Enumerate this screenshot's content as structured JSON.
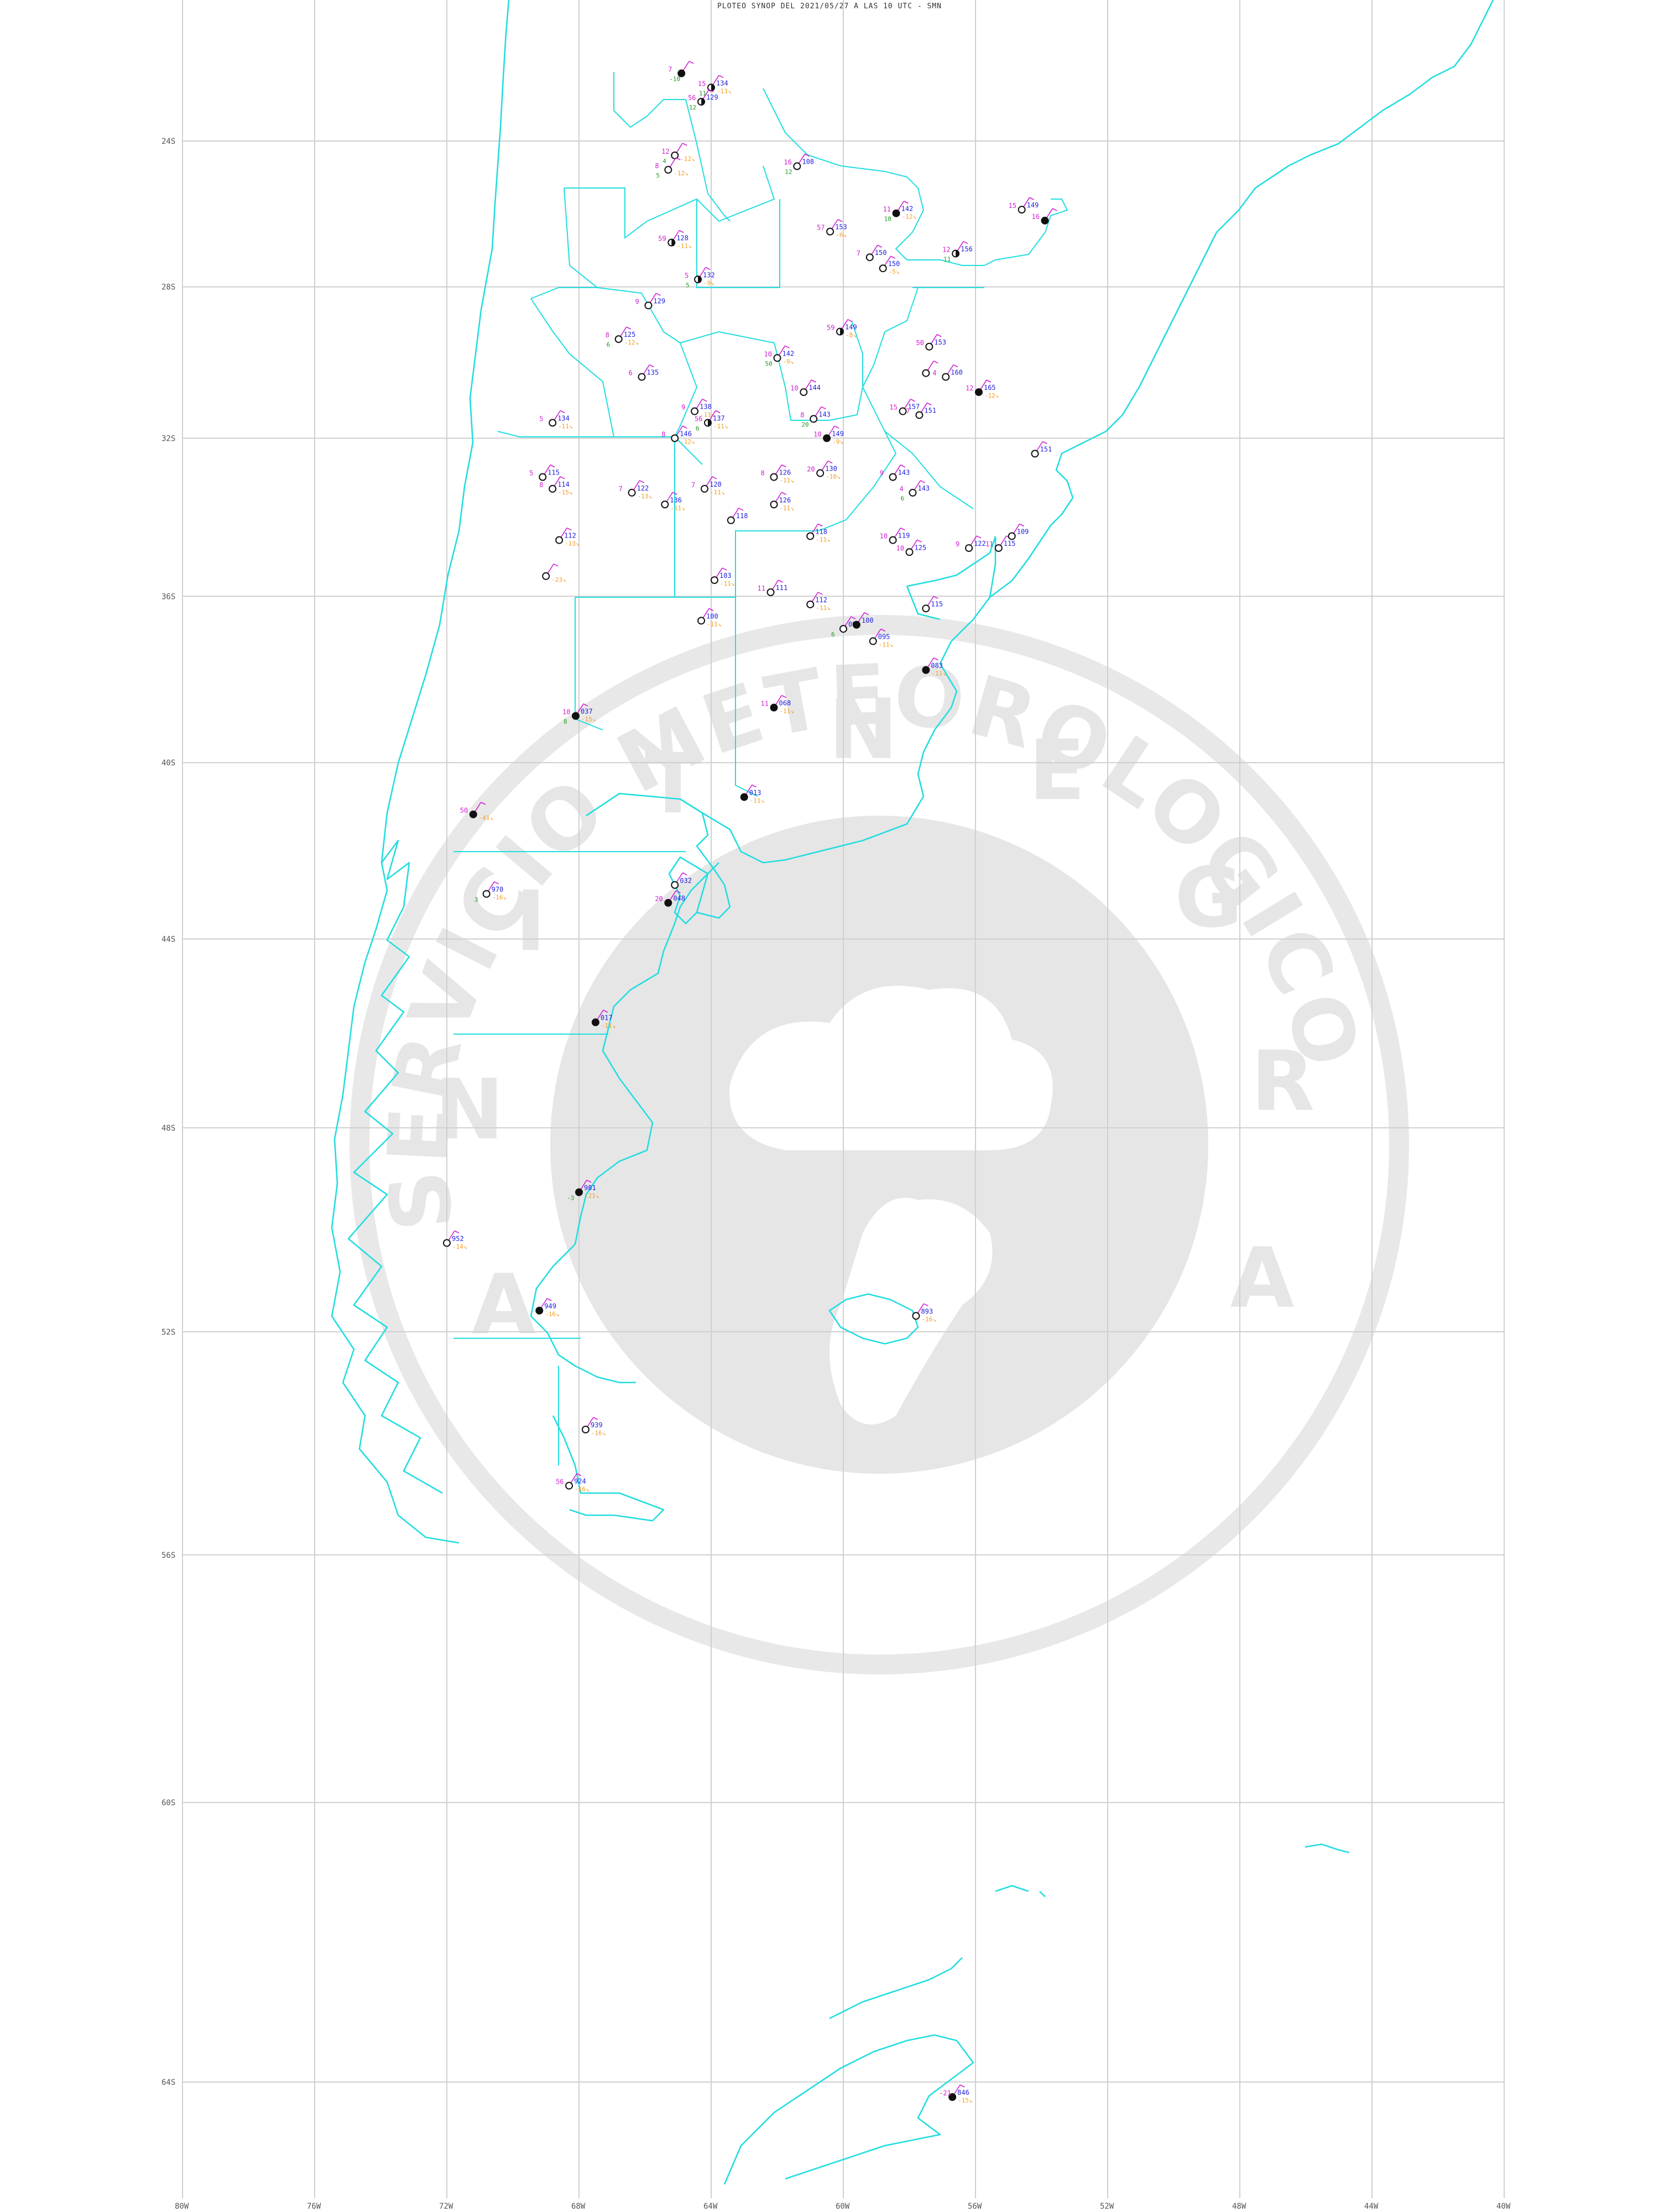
{
  "title": "PLOTEO SYNOP DEL 2021/05/27 A LAS 10 UTC - SMN",
  "lat_labels": [
    "24S",
    "28S",
    "32S",
    "36S",
    "40S",
    "44S",
    "48S",
    "52S",
    "56S",
    "60S",
    "64S"
  ],
  "lon_labels": [
    "80W",
    "76W",
    "72W",
    "68W",
    "64W",
    "60W",
    "56W",
    "52W",
    "48W",
    "44W",
    "40W"
  ],
  "watermark": {
    "arc_text": "SERVICIO METEOROLOGICO NACIONAL",
    "bottom_letters": [
      "A",
      "R",
      "G",
      "E",
      "N",
      "T",
      "I",
      "N",
      "A"
    ]
  },
  "colors": {
    "coast": "#22dde0",
    "grid": "#cfcfcf",
    "pressure": "#1e1ee0",
    "temperature": "#d020d0",
    "dewpoint": "#1f9b1f",
    "tendency": "#f39b1e",
    "watermark": "#e6e6e6"
  },
  "stations": [
    {
      "lon": -64.9,
      "lat": -22.1,
      "p": "",
      "t": "7",
      "d": "-10",
      "tend": "",
      "fill": "full"
    },
    {
      "lon": -64.0,
      "lat": -22.5,
      "p": "134",
      "t": "15",
      "d": "11",
      "tend": "-13",
      "fill": "half"
    },
    {
      "lon": -64.3,
      "lat": -22.9,
      "p": "129",
      "t": "56",
      "d": "12",
      "tend": "",
      "fill": "half"
    },
    {
      "lon": -65.1,
      "lat": -24.4,
      "p": "",
      "t": "12",
      "d": "4",
      "tend": "-12",
      "fill": "empty"
    },
    {
      "lon": -65.3,
      "lat": -24.8,
      "p": "",
      "t": "8",
      "d": "5",
      "tend": "-12",
      "fill": "empty"
    },
    {
      "lon": -61.4,
      "lat": -24.7,
      "p": "108",
      "t": "16",
      "d": "12",
      "tend": "",
      "fill": "empty"
    },
    {
      "lon": -58.4,
      "lat": -26.0,
      "p": "142",
      "t": "11",
      "d": "10",
      "tend": "-12",
      "fill": "full"
    },
    {
      "lon": -54.6,
      "lat": -25.9,
      "p": "149",
      "t": "15",
      "d": "",
      "tend": "",
      "fill": "empty"
    },
    {
      "lon": -53.9,
      "lat": -26.2,
      "p": "",
      "t": "16",
      "d": "",
      "tend": "",
      "fill": "full"
    },
    {
      "lon": -60.4,
      "lat": -26.5,
      "p": "153",
      "t": "57",
      "d": "",
      "tend": "-6",
      "fill": "empty"
    },
    {
      "lon": -59.2,
      "lat": -27.2,
      "p": "150",
      "t": "7",
      "d": "",
      "tend": "",
      "fill": "empty"
    },
    {
      "lon": -58.8,
      "lat": -27.5,
      "p": "150",
      "t": "",
      "d": "",
      "tend": "-5",
      "fill": "empty"
    },
    {
      "lon": -56.6,
      "lat": -27.1,
      "p": "156",
      "t": "12",
      "d": "11",
      "tend": "",
      "fill": "half"
    },
    {
      "lon": -65.2,
      "lat": -26.8,
      "p": "128",
      "t": "59",
      "d": "",
      "tend": "-11",
      "fill": "half"
    },
    {
      "lon": -64.4,
      "lat": -27.8,
      "p": "132",
      "t": "5",
      "d": "5",
      "tend": "-9",
      "fill": "half"
    },
    {
      "lon": -65.9,
      "lat": -28.5,
      "p": "129",
      "t": "9",
      "d": "",
      "tend": "",
      "fill": "empty"
    },
    {
      "lon": -66.8,
      "lat": -29.4,
      "p": "125",
      "t": "8",
      "d": "6",
      "tend": "-12",
      "fill": "empty"
    },
    {
      "lon": -60.1,
      "lat": -29.2,
      "p": "149",
      "t": "59",
      "d": "",
      "tend": "-8",
      "fill": "half"
    },
    {
      "lon": -57.4,
      "lat": -29.6,
      "p": "153",
      "t": "50",
      "d": "",
      "tend": "",
      "fill": "empty"
    },
    {
      "lon": -62.0,
      "lat": -29.9,
      "p": "142",
      "t": "10",
      "d": "50",
      "tend": "-9",
      "fill": "empty"
    },
    {
      "lon": -66.1,
      "lat": -30.4,
      "p": "135",
      "t": "6",
      "d": "",
      "tend": "",
      "fill": "empty"
    },
    {
      "lon": -57.5,
      "lat": -30.3,
      "p": "",
      "t": "",
      "d": "",
      "tend": "",
      "fill": "empty"
    },
    {
      "lon": -56.9,
      "lat": -30.4,
      "p": "160",
      "t": "4",
      "d": "",
      "tend": "",
      "fill": "empty"
    },
    {
      "lon": -55.9,
      "lat": -30.8,
      "p": "165",
      "t": "12",
      "d": "",
      "tend": "-12",
      "fill": "full"
    },
    {
      "lon": -61.2,
      "lat": -30.8,
      "p": "144",
      "t": "10",
      "d": "",
      "tend": "",
      "fill": "empty"
    },
    {
      "lon": -64.5,
      "lat": -31.3,
      "p": "138",
      "t": "9",
      "d": "",
      "tend": "-11",
      "fill": "empty"
    },
    {
      "lon": -64.1,
      "lat": -31.6,
      "p": "137",
      "t": "56",
      "d": "6",
      "tend": "-11",
      "fill": "half"
    },
    {
      "lon": -60.9,
      "lat": -31.5,
      "p": "143",
      "t": "8",
      "d": "20",
      "tend": "",
      "fill": "empty"
    },
    {
      "lon": -58.2,
      "lat": -31.3,
      "p": "157",
      "t": "15",
      "d": "",
      "tend": "",
      "fill": "empty"
    },
    {
      "lon": -57.7,
      "lat": -31.4,
      "p": "151",
      "t": "7",
      "d": "",
      "tend": "",
      "fill": "empty"
    },
    {
      "lon": -68.8,
      "lat": -31.6,
      "p": "134",
      "t": "5",
      "d": "",
      "tend": "-11",
      "fill": "empty"
    },
    {
      "lon": -65.1,
      "lat": -32.0,
      "p": "146",
      "t": "8",
      "d": "",
      "tend": "-12",
      "fill": "empty"
    },
    {
      "lon": -60.5,
      "lat": -32.0,
      "p": "149",
      "t": "10",
      "d": "",
      "tend": "-9",
      "fill": "full"
    },
    {
      "lon": -54.2,
      "lat": -32.4,
      "p": "151",
      "t": "",
      "d": "",
      "tend": "",
      "fill": "empty"
    },
    {
      "lon": -69.1,
      "lat": -33.0,
      "p": "115",
      "t": "5",
      "d": "",
      "tend": "",
      "fill": "empty"
    },
    {
      "lon": -68.8,
      "lat": -33.3,
      "p": "114",
      "t": "8",
      "d": "",
      "tend": "-15",
      "fill": "empty"
    },
    {
      "lon": -66.4,
      "lat": -33.4,
      "p": "122",
      "t": "7",
      "d": "",
      "tend": "-13",
      "fill": "empty"
    },
    {
      "lon": -64.2,
      "lat": -33.3,
      "p": "120",
      "t": "7",
      "d": "",
      "tend": "-11",
      "fill": "empty"
    },
    {
      "lon": -62.1,
      "lat": -33.0,
      "p": "126",
      "t": "8",
      "d": "",
      "tend": "-11",
      "fill": "empty"
    },
    {
      "lon": -60.7,
      "lat": -32.9,
      "p": "130",
      "t": "20",
      "d": "",
      "tend": "-10",
      "fill": "empty"
    },
    {
      "lon": -58.5,
      "lat": -33.0,
      "p": "143",
      "t": "9",
      "d": "",
      "tend": "",
      "fill": "empty"
    },
    {
      "lon": -57.9,
      "lat": -33.4,
      "p": "143",
      "t": "4",
      "d": "6",
      "tend": "",
      "fill": "empty"
    },
    {
      "lon": -65.4,
      "lat": -33.7,
      "p": "136",
      "t": "",
      "d": "",
      "tend": "-11",
      "fill": "empty"
    },
    {
      "lon": -62.1,
      "lat": -33.7,
      "p": "126",
      "t": "",
      "d": "",
      "tend": "-11",
      "fill": "empty"
    },
    {
      "lon": -63.4,
      "lat": -34.1,
      "p": "118",
      "t": "",
      "d": "",
      "tend": "",
      "fill": "empty"
    },
    {
      "lon": -68.6,
      "lat": -34.6,
      "p": "112",
      "t": "",
      "d": "",
      "tend": "-13",
      "fill": "empty"
    },
    {
      "lon": -61.0,
      "lat": -34.5,
      "p": "118",
      "t": "",
      "d": "",
      "tend": "-11",
      "fill": "empty"
    },
    {
      "lon": -58.5,
      "lat": -34.6,
      "p": "119",
      "t": "10",
      "d": "",
      "tend": "",
      "fill": "empty"
    },
    {
      "lon": -58.0,
      "lat": -34.9,
      "p": "125",
      "t": "10",
      "d": "",
      "tend": "",
      "fill": "empty"
    },
    {
      "lon": -56.2,
      "lat": -34.8,
      "p": "122",
      "t": "9",
      "d": "",
      "tend": "",
      "fill": "empty"
    },
    {
      "lon": -55.3,
      "lat": -34.8,
      "p": "115",
      "t": "11",
      "d": "",
      "tend": "",
      "fill": "empty"
    },
    {
      "lon": -54.9,
      "lat": -34.5,
      "p": "109",
      "t": "",
      "d": "",
      "tend": "",
      "fill": "empty"
    },
    {
      "lon": -69.0,
      "lat": -35.5,
      "p": "",
      "t": "",
      "d": "",
      "tend": "-23",
      "fill": "empty"
    },
    {
      "lon": -63.9,
      "lat": -35.6,
      "p": "103",
      "t": "",
      "d": "",
      "tend": "-11",
      "fill": "empty"
    },
    {
      "lon": -62.2,
      "lat": -35.9,
      "p": "111",
      "t": "11",
      "d": "",
      "tend": "",
      "fill": "empty"
    },
    {
      "lon": -61.0,
      "lat": -36.2,
      "p": "112",
      "t": "",
      "d": "",
      "tend": "-11",
      "fill": "empty"
    },
    {
      "lon": -57.5,
      "lat": -36.3,
      "p": "115",
      "t": "",
      "d": "",
      "tend": "",
      "fill": "empty"
    },
    {
      "lon": -64.3,
      "lat": -36.6,
      "p": "100",
      "t": "",
      "d": "",
      "tend": "-11",
      "fill": "empty"
    },
    {
      "lon": -60.0,
      "lat": -36.8,
      "p": "098",
      "t": "",
      "d": "6",
      "tend": "",
      "fill": "empty"
    },
    {
      "lon": -59.6,
      "lat": -36.7,
      "p": "100",
      "t": "",
      "d": "",
      "tend": "",
      "fill": "full"
    },
    {
      "lon": -59.1,
      "lat": -37.1,
      "p": "095",
      "t": "",
      "d": "",
      "tend": "-11",
      "fill": "empty"
    },
    {
      "lon": -57.5,
      "lat": -37.8,
      "p": "083",
      "t": "",
      "d": "",
      "tend": "-11",
      "fill": "full"
    },
    {
      "lon": -62.1,
      "lat": -38.7,
      "p": "068",
      "t": "11",
      "d": "",
      "tend": "-11",
      "fill": "full"
    },
    {
      "lon": -68.1,
      "lat": -38.9,
      "p": "037",
      "t": "10",
      "d": "8",
      "tend": "-15",
      "fill": "full"
    },
    {
      "lon": -63.0,
      "lat": -40.8,
      "p": "013",
      "t": "",
      "d": "",
      "tend": "-11",
      "fill": "full"
    },
    {
      "lon": -71.2,
      "lat": -41.2,
      "p": "",
      "t": "50",
      "d": "",
      "tend": "-41",
      "fill": "full"
    },
    {
      "lon": -65.1,
      "lat": -42.8,
      "p": "032",
      "t": "",
      "d": "",
      "tend": "",
      "fill": "empty"
    },
    {
      "lon": -70.8,
      "lat": -43.0,
      "p": "970",
      "t": "",
      "d": "3",
      "tend": "-16",
      "fill": "empty"
    },
    {
      "lon": -65.3,
      "lat": -43.2,
      "p": "048",
      "t": "20",
      "d": "",
      "tend": "",
      "fill": "full"
    },
    {
      "lon": -67.5,
      "lat": -45.8,
      "p": "017",
      "t": "",
      "d": "",
      "tend": "-11",
      "fill": "full"
    },
    {
      "lon": -68.0,
      "lat": -49.3,
      "p": "981",
      "t": "",
      "d": "-3",
      "tend": "-21",
      "fill": "full"
    },
    {
      "lon": -72.0,
      "lat": -50.3,
      "p": "952",
      "t": "",
      "d": "",
      "tend": "-14",
      "fill": "empty"
    },
    {
      "lon": -69.2,
      "lat": -51.6,
      "p": "949",
      "t": "",
      "d": "",
      "tend": "-16",
      "fill": "full"
    },
    {
      "lon": -57.8,
      "lat": -51.7,
      "p": "893",
      "t": "",
      "d": "",
      "tend": "-16",
      "fill": "empty"
    },
    {
      "lon": -67.8,
      "lat": -53.8,
      "p": "939",
      "t": "",
      "d": "",
      "tend": "-16",
      "fill": "empty"
    },
    {
      "lon": -68.3,
      "lat": -54.8,
      "p": "924",
      "t": "56",
      "d": "",
      "tend": "-16",
      "fill": "empty"
    },
    {
      "lon": -56.7,
      "lat": -64.2,
      "p": "846",
      "t": "-21",
      "d": "",
      "tend": "-15",
      "fill": "full"
    }
  ]
}
